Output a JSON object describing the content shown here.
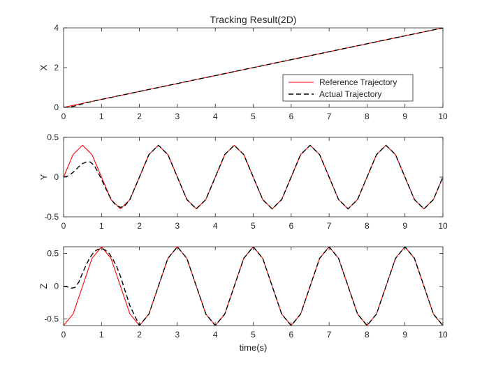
{
  "chart_data": [
    {
      "type": "line",
      "title": "Tracking Result(2D)",
      "xlabel": "",
      "ylabel": "X",
      "xlim": [
        0,
        10
      ],
      "ylim": [
        0,
        4
      ],
      "xticks": [
        0,
        1,
        2,
        3,
        4,
        5,
        6,
        7,
        8,
        9,
        10
      ],
      "yticks": [
        0,
        2,
        4
      ],
      "ytick_labels": [
        "0",
        "2",
        "4"
      ],
      "grid": false,
      "legend": {
        "location": "lower-right",
        "entries": [
          "Reference Trajectory",
          "Actual Trajectory"
        ]
      },
      "series": [
        {
          "name": "Reference Trajectory",
          "color": "#ff0000",
          "style": "solid",
          "x": [
            0,
            1,
            2,
            3,
            4,
            5,
            6,
            7,
            8,
            9,
            10
          ],
          "y": [
            0,
            0.4,
            0.8,
            1.2,
            1.6,
            2.0,
            2.4,
            2.8,
            3.2,
            3.6,
            4.0
          ]
        },
        {
          "name": "Actual Trajectory",
          "color": "#000000",
          "style": "dashed",
          "x": [
            0,
            0.1,
            0.2,
            0.3,
            0.4,
            0.5,
            0.6,
            0.8,
            1,
            2,
            3,
            4,
            5,
            6,
            7,
            8,
            9,
            10
          ],
          "y": [
            0,
            0.01,
            0.03,
            0.07,
            0.12,
            0.18,
            0.23,
            0.32,
            0.4,
            0.8,
            1.2,
            1.6,
            2.0,
            2.4,
            2.8,
            3.2,
            3.6,
            4.0
          ]
        }
      ]
    },
    {
      "type": "line",
      "title": "",
      "xlabel": "",
      "ylabel": "Y",
      "xlim": [
        0,
        10
      ],
      "ylim": [
        -0.5,
        0.5
      ],
      "xticks": [
        0,
        1,
        2,
        3,
        4,
        5,
        6,
        7,
        8,
        9,
        10
      ],
      "yticks": [
        -0.5,
        0,
        0.5
      ],
      "ytick_labels": [
        "-0.5",
        "0",
        "0.5"
      ],
      "grid": false,
      "series": [
        {
          "name": "Reference Trajectory",
          "color": "#ff0000",
          "style": "solid",
          "x": [
            0,
            0.25,
            0.5,
            0.75,
            1,
            1.25,
            1.5,
            1.75,
            2,
            2.25,
            2.5,
            2.75,
            3,
            3.25,
            3.5,
            3.75,
            4,
            4.25,
            4.5,
            4.75,
            5,
            5.25,
            5.5,
            5.75,
            6,
            6.25,
            6.5,
            6.75,
            7,
            7.25,
            7.5,
            7.75,
            8,
            8.25,
            8.5,
            8.75,
            9,
            9.25,
            9.5,
            9.75,
            10
          ],
          "y": [
            0,
            0.283,
            0.4,
            0.283,
            0,
            -0.283,
            -0.4,
            -0.283,
            0,
            0.283,
            0.4,
            0.283,
            0,
            -0.283,
            -0.4,
            -0.283,
            0,
            0.283,
            0.4,
            0.283,
            0,
            -0.283,
            -0.4,
            -0.283,
            0,
            0.283,
            0.4,
            0.283,
            0,
            -0.283,
            -0.4,
            -0.283,
            0,
            0.283,
            0.4,
            0.283,
            0,
            -0.283,
            -0.4,
            -0.283,
            0
          ]
        },
        {
          "name": "Actual Trajectory",
          "color": "#000000",
          "style": "dashed",
          "x": [
            0,
            0.1,
            0.2,
            0.3,
            0.4,
            0.5,
            0.6,
            0.7,
            0.8,
            0.9,
            1.0,
            1.1,
            1.2,
            1.3,
            1.4,
            1.5,
            1.6,
            1.75,
            2,
            2.25,
            2.5,
            2.75,
            3,
            3.25,
            3.5,
            3.75,
            4,
            4.25,
            4.5,
            4.75,
            5,
            5.25,
            5.5,
            5.75,
            6,
            6.25,
            6.5,
            6.75,
            7,
            7.25,
            7.5,
            7.75,
            8,
            8.25,
            8.5,
            8.75,
            9,
            9.25,
            9.5,
            9.75,
            10
          ],
          "y": [
            0,
            0.01,
            0.04,
            0.08,
            0.13,
            0.17,
            0.19,
            0.19,
            0.15,
            0.07,
            -0.03,
            -0.13,
            -0.23,
            -0.31,
            -0.36,
            -0.38,
            -0.37,
            -0.28,
            0,
            0.283,
            0.4,
            0.283,
            0,
            -0.283,
            -0.4,
            -0.283,
            0,
            0.283,
            0.4,
            0.283,
            0,
            -0.283,
            -0.4,
            -0.283,
            0,
            0.283,
            0.4,
            0.283,
            0,
            -0.283,
            -0.4,
            -0.283,
            0,
            0.283,
            0.4,
            0.283,
            0,
            -0.283,
            -0.4,
            -0.283,
            0
          ]
        }
      ]
    },
    {
      "type": "line",
      "title": "",
      "xlabel": "time(s)",
      "ylabel": "Z",
      "xlim": [
        0,
        10
      ],
      "ylim": [
        -0.6,
        0.6
      ],
      "xticks": [
        0,
        1,
        2,
        3,
        4,
        5,
        6,
        7,
        8,
        9,
        10
      ],
      "yticks": [
        -0.5,
        0,
        0.5
      ],
      "ytick_labels": [
        "-0.5",
        "0",
        "0.5"
      ],
      "grid": false,
      "series": [
        {
          "name": "Reference Trajectory",
          "color": "#ff0000",
          "style": "solid",
          "x": [
            0,
            0.25,
            0.5,
            0.75,
            1,
            1.25,
            1.5,
            1.75,
            2,
            2.25,
            2.5,
            2.75,
            3,
            3.25,
            3.5,
            3.75,
            4,
            4.25,
            4.5,
            4.75,
            5,
            5.25,
            5.5,
            5.75,
            6,
            6.25,
            6.5,
            6.75,
            7,
            7.25,
            7.5,
            7.75,
            8,
            8.25,
            8.5,
            8.75,
            9,
            9.25,
            9.5,
            9.75,
            10
          ],
          "y": [
            -0.6,
            -0.424,
            0,
            0.424,
            0.6,
            0.424,
            0,
            -0.424,
            -0.6,
            -0.424,
            0,
            0.424,
            0.6,
            0.424,
            0,
            -0.424,
            -0.6,
            -0.424,
            0,
            0.424,
            0.6,
            0.424,
            0,
            -0.424,
            -0.6,
            -0.424,
            0,
            0.424,
            0.6,
            0.424,
            0,
            -0.424,
            -0.6,
            -0.424,
            0,
            0.424,
            0.6,
            0.424,
            0,
            -0.424,
            -0.6
          ]
        },
        {
          "name": "Actual Trajectory",
          "color": "#000000",
          "style": "dashed",
          "x": [
            0,
            0.1,
            0.2,
            0.3,
            0.4,
            0.5,
            0.6,
            0.7,
            0.8,
            0.9,
            1.0,
            1.1,
            1.2,
            1.3,
            1.4,
            1.5,
            1.75,
            2,
            2.25,
            2.5,
            2.75,
            3,
            3.25,
            3.5,
            3.75,
            4,
            4.25,
            4.5,
            4.75,
            5,
            5.25,
            5.5,
            5.75,
            6,
            6.25,
            6.5,
            6.75,
            7,
            7.25,
            7.5,
            7.75,
            8,
            8.25,
            8.5,
            8.75,
            9,
            9.25,
            9.5,
            9.75,
            10
          ],
          "y": [
            0,
            -0.01,
            -0.03,
            -0.02,
            0.06,
            0.2,
            0.33,
            0.44,
            0.52,
            0.56,
            0.57,
            0.55,
            0.5,
            0.41,
            0.3,
            0.15,
            -0.3,
            -0.6,
            -0.424,
            0,
            0.424,
            0.6,
            0.424,
            0,
            -0.424,
            -0.6,
            -0.424,
            0,
            0.424,
            0.6,
            0.424,
            0,
            -0.424,
            -0.6,
            -0.424,
            0,
            0.424,
            0.6,
            0.424,
            0,
            -0.424,
            -0.6,
            -0.424,
            0,
            0.424,
            0.6,
            0.424,
            0,
            -0.424,
            -0.6
          ]
        }
      ]
    }
  ]
}
